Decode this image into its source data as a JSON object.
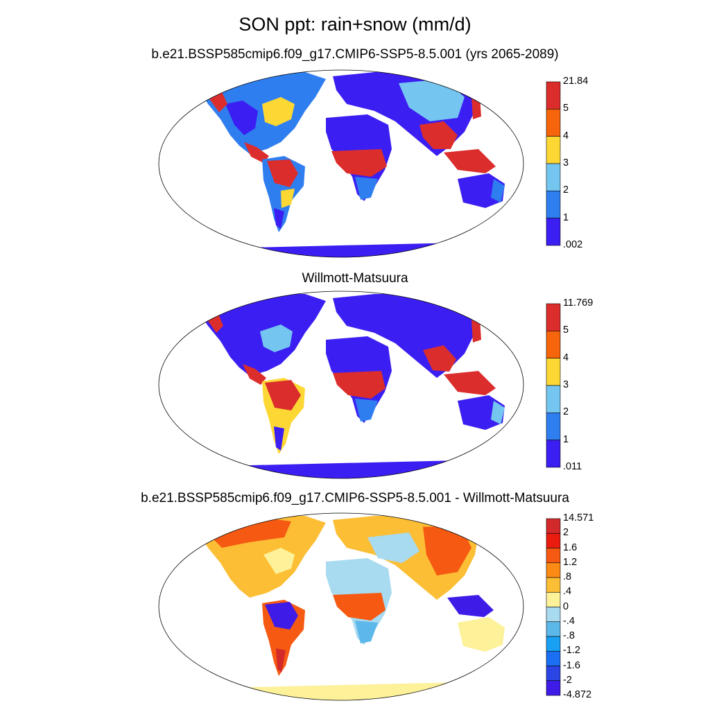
{
  "title": "SON ppt: rain+snow (mm/d)",
  "panels": [
    {
      "title": "b.e21.BSSP585cmip6.f09_g17.CMIP6-SSP5-8.5.001 (yrs 2065-2089)",
      "colorbar": {
        "labels": [
          "21.84",
          "5",
          "4",
          "3",
          "2",
          "1",
          ".002"
        ],
        "colors": [
          "#dc2d2d",
          "#f6650c",
          "#fdd835",
          "#74c6f0",
          "#2f7ef0",
          "#3b1ff2"
        ]
      }
    },
    {
      "title": "Willmott-Matsuura",
      "colorbar": {
        "labels": [
          "11.769",
          "5",
          "4",
          "3",
          "2",
          "1",
          ".011"
        ],
        "colors": [
          "#dc2d2d",
          "#f6650c",
          "#fdd835",
          "#74c6f0",
          "#2f7ef0",
          "#3b1ff2"
        ]
      }
    },
    {
      "title": "b.e21.BSSP585cmip6.f09_g17.CMIP6-SSP5-8.5.001 - Willmott-Matsuura",
      "colorbar": {
        "labels": [
          "14.571",
          "2",
          "1.6",
          "1.2",
          ".8",
          ".4",
          "0",
          "-.4",
          "-.8",
          "-1.2",
          "-1.6",
          "-2",
          "-4.872"
        ],
        "colors": [
          "#d2292b",
          "#ea1c10",
          "#f65a12",
          "#fb8b14",
          "#fcbe35",
          "#fdf19a",
          "#a8daf0",
          "#5db8ea",
          "#1aa0f3",
          "#1a6ff3",
          "#2b45e4",
          "#3f1be8"
        ]
      }
    }
  ]
}
